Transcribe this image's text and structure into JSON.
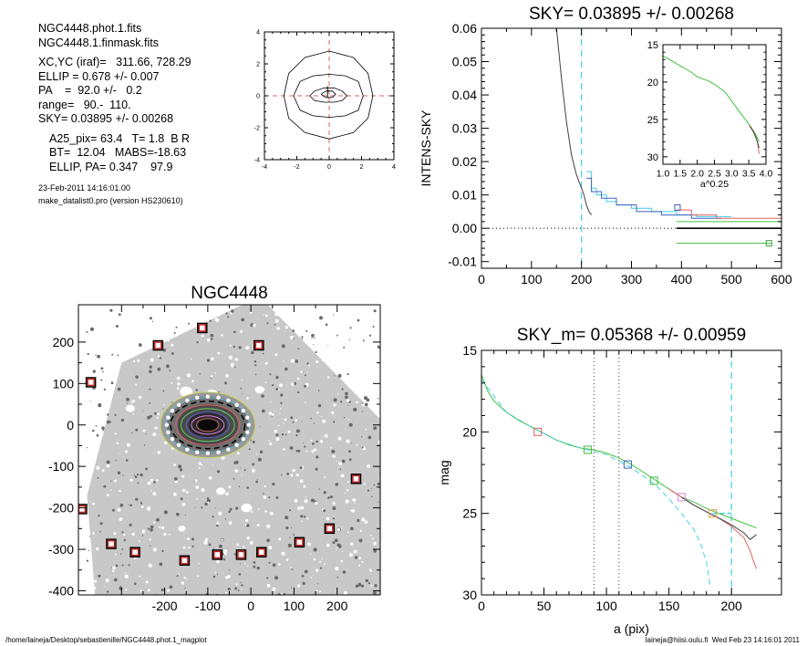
{
  "header": {
    "lines": [
      "NGC4448.phot.1.fits",
      "NGC4448.1.finmask.fits",
      "",
      "XC,YC (iraf)=   311.66, 728.29",
      "ELLIP = 0.678 +/- 0.007",
      "PA    =  92.0 +/-   0.2",
      "range=   90.-  110.",
      "SKY= 0.03895 +/- 0.00268",
      "",
      "A25_pix= 63.4   T= 1.8  B R",
      "BT=  12.04   MABS=-18.63",
      "ELLIP, PA= 0.347    97.9",
      "",
      "23-Feb-2011 14:16:01.00",
      "make_datalist0.pro (version HS230610)"
    ]
  },
  "footer": {
    "left": "/home/laineja/Desktop/sebastienille/NGC4448.phot.1_magplot",
    "right": "laineja@hiisi.oulu.fi  Wed Feb 23 14:16:01 2011"
  },
  "chart_data": [
    {
      "id": "contour",
      "type": "line",
      "xticks": [
        -4,
        -2,
        0,
        2,
        4
      ],
      "yticks": [
        -4,
        -2,
        0,
        2,
        4
      ],
      "xlim": [
        -4,
        4
      ],
      "ylim": [
        -4,
        4
      ],
      "crosshair_color": "#e06060",
      "contours": [
        [
          [
            -2.8,
            0
          ],
          [
            -2.5,
            1.4
          ],
          [
            -1.5,
            2.4
          ],
          [
            0,
            2.8
          ],
          [
            1.5,
            2.4
          ],
          [
            2.4,
            1.4
          ],
          [
            2.7,
            0
          ],
          [
            2.4,
            -1.4
          ],
          [
            1.5,
            -2.3
          ],
          [
            0,
            -2.7
          ],
          [
            -1.5,
            -2.3
          ],
          [
            -2.5,
            -1.4
          ],
          [
            -2.8,
            0
          ]
        ],
        [
          [
            -2.2,
            0
          ],
          [
            -1.8,
            0.9
          ],
          [
            -1,
            1.25
          ],
          [
            0,
            1.35
          ],
          [
            1,
            1.25
          ],
          [
            1.8,
            0.9
          ],
          [
            2.1,
            0
          ],
          [
            1.8,
            -0.9
          ],
          [
            1,
            -1.25
          ],
          [
            0,
            -1.35
          ],
          [
            -1,
            -1.25
          ],
          [
            -1.8,
            -0.9
          ],
          [
            -2.2,
            0
          ]
        ],
        [
          [
            -1.2,
            0
          ],
          [
            -0.9,
            0.3
          ],
          [
            -0.3,
            0.5
          ],
          [
            0.3,
            0.5
          ],
          [
            0.8,
            0.3
          ],
          [
            1.1,
            0
          ],
          [
            0.8,
            -0.3
          ],
          [
            0.3,
            -0.4
          ],
          [
            -0.3,
            -0.4
          ],
          [
            -0.9,
            -0.3
          ],
          [
            -1.2,
            0
          ]
        ],
        [
          [
            -0.5,
            0.1
          ],
          [
            -0.2,
            0.3
          ],
          [
            0.2,
            0.3
          ],
          [
            0.4,
            0.1
          ],
          [
            0.2,
            -0.1
          ],
          [
            -0.2,
            -0.1
          ],
          [
            -0.5,
            0.1
          ]
        ]
      ]
    },
    {
      "id": "sky",
      "type": "line",
      "title": "SKY= 0.03895 +/- 0.00268",
      "ylabel": "INTENS-SKY",
      "xlim": [
        0,
        600
      ],
      "ylim": [
        -0.012,
        0.06
      ],
      "xticks": [
        0,
        100,
        200,
        300,
        400,
        500,
        600
      ],
      "yticks": [
        -0.01,
        0.0,
        0.01,
        0.02,
        0.03,
        0.04,
        0.05,
        0.06
      ],
      "ytick_labels": [
        "-0.01",
        "0.00",
        "0.01",
        "0.02",
        "0.03",
        "0.04",
        "0.05",
        "0.06"
      ],
      "vline": 200,
      "series": [
        {
          "color": "#404040",
          "x": [
            150,
            160,
            170,
            180,
            190,
            200,
            205,
            210,
            215,
            220
          ],
          "y": [
            0.06,
            0.045,
            0.032,
            0.022,
            0.016,
            0.012,
            0.01,
            0.007,
            0.005,
            0.004
          ]
        },
        {
          "color": "#40d0e0",
          "x": [
            210,
            220,
            220,
            230,
            230,
            250,
            250,
            270,
            270,
            300,
            300,
            340,
            340,
            390,
            390,
            430,
            430,
            500
          ],
          "y": [
            0.017,
            0.017,
            0.012,
            0.012,
            0.01,
            0.01,
            0.008,
            0.008,
            0.007,
            0.007,
            0.006,
            0.006,
            0.005,
            0.005,
            0.004,
            0.004,
            0.0035,
            0.0035
          ]
        },
        {
          "color": "#4060c0",
          "x": [
            210,
            220,
            220,
            240,
            240,
            270,
            270,
            310,
            310,
            360,
            360,
            420,
            420,
            480
          ],
          "y": [
            0.015,
            0.015,
            0.011,
            0.011,
            0.009,
            0.009,
            0.007,
            0.007,
            0.005,
            0.005,
            0.004,
            0.004,
            0.003,
            0.003
          ]
        },
        {
          "color": "#e06060",
          "x": [
            390,
            420,
            420,
            470,
            470,
            600
          ],
          "y": [
            0.0055,
            0.0055,
            0.004,
            0.004,
            0.003,
            0.003
          ]
        },
        {
          "color": "#40c040",
          "x": [
            390,
            600
          ],
          "y": [
            0.002,
            0.002
          ]
        },
        {
          "color": "#000000",
          "x": [
            390,
            600
          ],
          "y": [
            0.0,
            0.0
          ]
        },
        {
          "color": "#40c040",
          "x": [
            390,
            580
          ],
          "y": [
            -0.0045,
            -0.0045
          ]
        }
      ],
      "markers": [
        {
          "x": 392,
          "y": 0.0062,
          "color": "#4060c0"
        },
        {
          "x": 575,
          "y": -0.0045,
          "color": "#40a040"
        }
      ],
      "inset": {
        "xlabel": "a^0.25",
        "xlim": [
          1.0,
          4.0
        ],
        "ylim": [
          15,
          31
        ],
        "xticks": [
          1.0,
          1.5,
          2.0,
          2.5,
          3.0,
          3.5,
          4.0
        ],
        "xtick_labels": [
          "1.0",
          "1.5",
          "2.0",
          "2.5",
          "3.0",
          "3.5",
          "4.0"
        ],
        "yticks": [
          15,
          20,
          25,
          30
        ],
        "series": [
          {
            "color": "#40c040",
            "x": [
              1.0,
              1.2,
              1.5,
              1.8,
              2.0,
              2.3,
              2.5,
              2.8,
              3.0,
              3.2,
              3.5,
              3.7,
              3.8
            ],
            "y": [
              16.5,
              17.0,
              17.8,
              18.6,
              19.3,
              19.8,
              20.3,
              21.3,
              22.5,
              23.8,
              25.6,
              27.0,
              28.0
            ]
          },
          {
            "color": "#e06060",
            "x": [
              3.5,
              3.6,
              3.7,
              3.75,
              3.8
            ],
            "y": [
              25.8,
              26.3,
              27.3,
              28.0,
              29.6
            ]
          },
          {
            "color": "#404040",
            "x": [
              3.55,
              3.65,
              3.72,
              3.8
            ],
            "y": [
              26.0,
              26.8,
              27.6,
              28.8
            ]
          }
        ]
      }
    },
    {
      "id": "image",
      "type": "scatter",
      "title": "NGC4448",
      "xlim": [
        -300,
        400
      ],
      "ylim": [
        -410,
        290
      ],
      "xticks": [
        -200,
        -100,
        0,
        100,
        200,
        300
      ],
      "xtick_labels": [
        "",
        "-200",
        "-100",
        "0",
        "100",
        "200"
      ],
      "yticks": [
        -400,
        -300,
        -200,
        -100,
        0,
        100,
        200
      ],
      "ellipses": [
        {
          "rx": 110,
          "ry": 36,
          "color": "#c8d860"
        },
        {
          "rx": 98,
          "ry": 30,
          "color": "#60c0e0"
        },
        {
          "rx": 86,
          "ry": 26,
          "color": "#000000"
        },
        {
          "rx": 74,
          "ry": 22,
          "color": "#e06060"
        },
        {
          "rx": 62,
          "ry": 18,
          "color": "#60d060"
        },
        {
          "rx": 50,
          "ry": 14,
          "color": "#6060d0"
        },
        {
          "rx": 38,
          "ry": 10,
          "color": "#e080e0"
        },
        {
          "rx": 26,
          "ry": 7,
          "color": "#c06060"
        }
      ],
      "masked_stars": [
        [
          23,
          234
        ],
        [
          -27,
          192
        ],
        [
          87,
          192
        ],
        [
          -103,
          103
        ],
        [
          -113,
          -203
        ],
        [
          -80,
          -287
        ],
        [
          -53,
          -307
        ],
        [
          3,
          -327
        ],
        [
          40,
          -313
        ],
        [
          67,
          -313
        ],
        [
          90,
          -307
        ],
        [
          133,
          -283
        ],
        [
          167,
          -250
        ],
        [
          197,
          -130
        ]
      ]
    },
    {
      "id": "mag",
      "type": "line",
      "title": "SKY_m=  0.05368 +/- 0.00959",
      "xlabel": "a (pix)",
      "ylabel": "mag",
      "xlim": [
        0,
        240
      ],
      "ylim": [
        30,
        15
      ],
      "xticks": [
        0,
        50,
        100,
        150,
        200
      ],
      "yticks": [
        15,
        20,
        25,
        30
      ],
      "vlines": [
        90,
        110
      ],
      "series": [
        {
          "color": "#40c040",
          "x": [
            0,
            5,
            10,
            20,
            30,
            40,
            50,
            60,
            70,
            80,
            90,
            100,
            110,
            120,
            130,
            140,
            150,
            160,
            170,
            180,
            190,
            200,
            210,
            220
          ],
          "y": [
            16.5,
            17.5,
            18.1,
            18.8,
            19.3,
            19.7,
            20.1,
            20.5,
            20.8,
            21.0,
            21.1,
            21.3,
            21.6,
            22.0,
            22.5,
            23.0,
            23.5,
            24.0,
            24.3,
            24.7,
            25.0,
            25.3,
            25.6,
            25.9
          ]
        },
        {
          "color": "#e06060",
          "x": [
            150,
            160,
            170,
            180,
            190,
            200,
            210,
            215,
            218,
            220
          ],
          "y": [
            23.5,
            24.0,
            24.5,
            24.9,
            25.3,
            25.8,
            26.5,
            27.3,
            28.0,
            28.4
          ]
        },
        {
          "color": "#404040",
          "x": [
            160,
            170,
            180,
            190,
            200,
            210,
            215,
            220
          ],
          "y": [
            24.0,
            24.5,
            24.9,
            25.3,
            25.7,
            26.2,
            26.6,
            26.3
          ]
        },
        {
          "color": "#40d0e0",
          "x": [
            0,
            20,
            40,
            60,
            80,
            100,
            120,
            140,
            150,
            160,
            170,
            175,
            180,
            183
          ],
          "y": [
            16.8,
            18.8,
            19.7,
            20.5,
            21.0,
            21.4,
            22.2,
            23.3,
            24.1,
            25.0,
            26.0,
            26.8,
            28.0,
            29.5
          ]
        }
      ],
      "markers": [
        {
          "x": 45,
          "y": 20.0,
          "color": "#e06060"
        },
        {
          "x": 85,
          "y": 21.1,
          "color": "#40c040"
        },
        {
          "x": 117,
          "y": 22.0,
          "color": "#4060c0"
        },
        {
          "x": 138,
          "y": 23.0,
          "color": "#40c040"
        },
        {
          "x": 160,
          "y": 24.0,
          "color": "#e080e0"
        },
        {
          "x": 185,
          "y": 25.0,
          "color": "#e0a040"
        }
      ],
      "sky_band": {
        "color": "#40d0e0",
        "x": [
          185,
          200
        ],
        "y": 25.0
      },
      "vline_sky": 200
    }
  ]
}
